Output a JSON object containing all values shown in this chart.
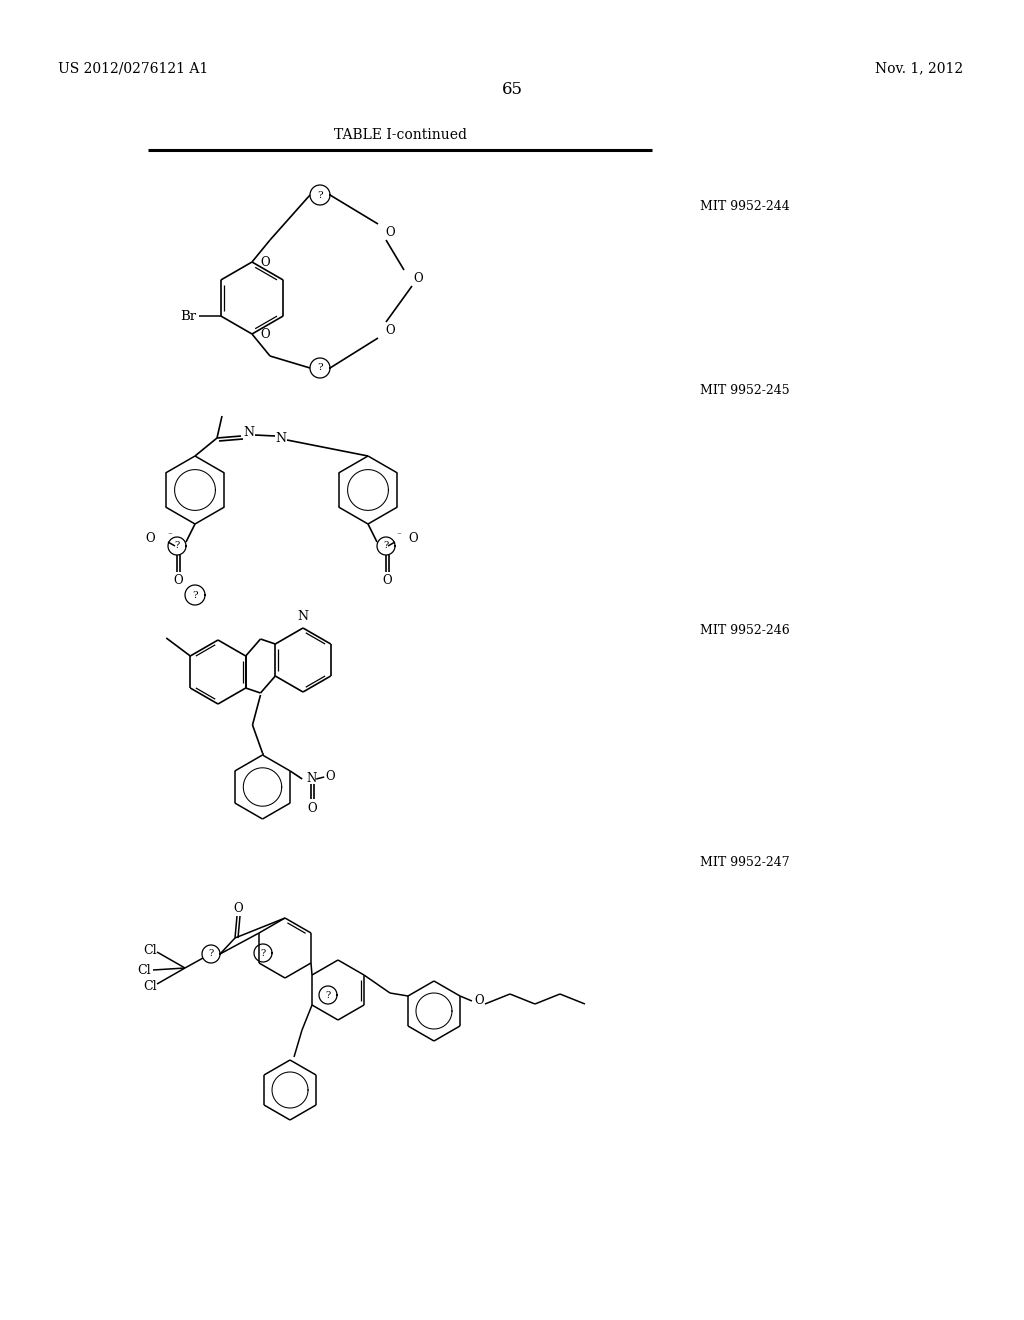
{
  "background_color": "#ffffff",
  "header_left": "US 2012/0276121 A1",
  "header_right": "Nov. 1, 2012",
  "page_number": "65",
  "table_title": "TABLE I-continued",
  "figsize": [
    10.24,
    13.2
  ],
  "dpi": 100
}
